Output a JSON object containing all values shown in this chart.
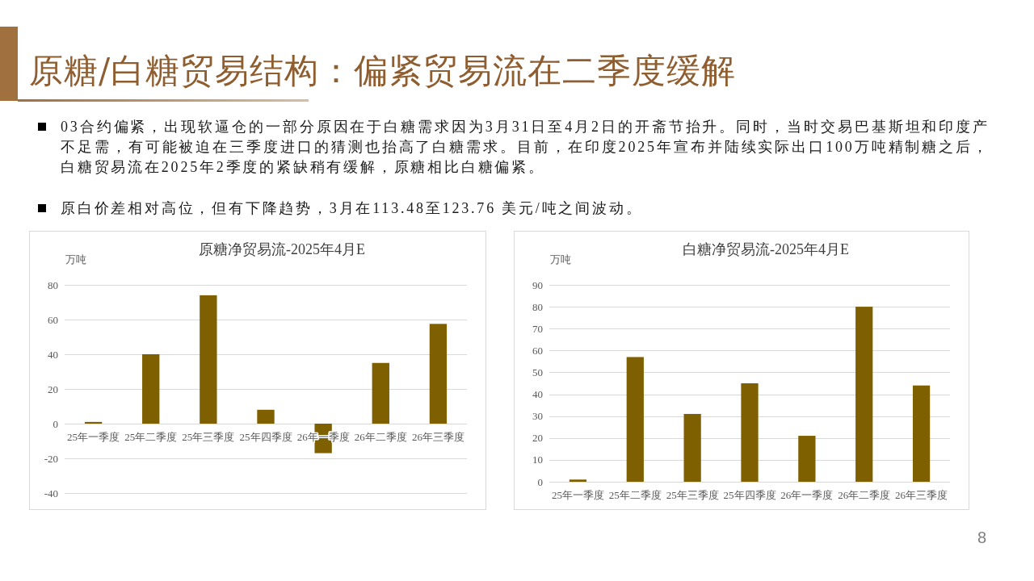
{
  "chart_data": [
    {
      "type": "other",
      "title": "原糖/白糖贸易结构：偏紧贸易流在二季度缓解",
      "annotations": [
        "03合约偏紧，出现软逼仓的一部分原因在于白糖需求因为3月31日至4月2日的开斋节抬升。同时，当时交易巴基斯坦和印度产不足需，有可能被迫在三季度进口的猜测也抬高了白糖需求。目前，在印度2025年宣布并陆续实际出口100万吨精制糖之后，白糖贸易流在2025年2季度的紧缺稍有缓解，原糖相比白糖偏紧。",
        "原白价差相对高位，但有下降趋势，3月在113.48至123.76 美元/吨之间波动。",
        "8"
      ]
    },
    {
      "type": "bar",
      "title": "原糖净贸易流-2025年4月E",
      "ylabel": "万吨",
      "categories": [
        "25年一季度",
        "25年二季度",
        "25年三季度",
        "25年四季度",
        "26年一季度",
        "26年二季度",
        "26年三季度"
      ],
      "values": [
        1,
        40,
        74,
        8,
        -17,
        35,
        57.5
      ],
      "color": "#7f6000",
      "ylim": [
        -40,
        80
      ],
      "yticks": [
        -40,
        -20,
        0,
        20,
        40,
        60,
        80
      ],
      "grid": "y"
    },
    {
      "type": "bar",
      "title": "白糖净贸易流-2025年4月E",
      "ylabel": "万吨",
      "categories": [
        "25年一季度",
        "25年二季度",
        "25年三季度",
        "25年四季度",
        "26年一季度",
        "26年二季度",
        "26年三季度"
      ],
      "values": [
        1,
        57,
        31,
        45,
        21,
        80,
        44
      ],
      "color": "#7f6000",
      "ylim": [
        0,
        90
      ],
      "yticks": [
        0,
        10,
        20,
        30,
        40,
        50,
        60,
        70,
        80,
        90
      ],
      "grid": "y"
    }
  ]
}
